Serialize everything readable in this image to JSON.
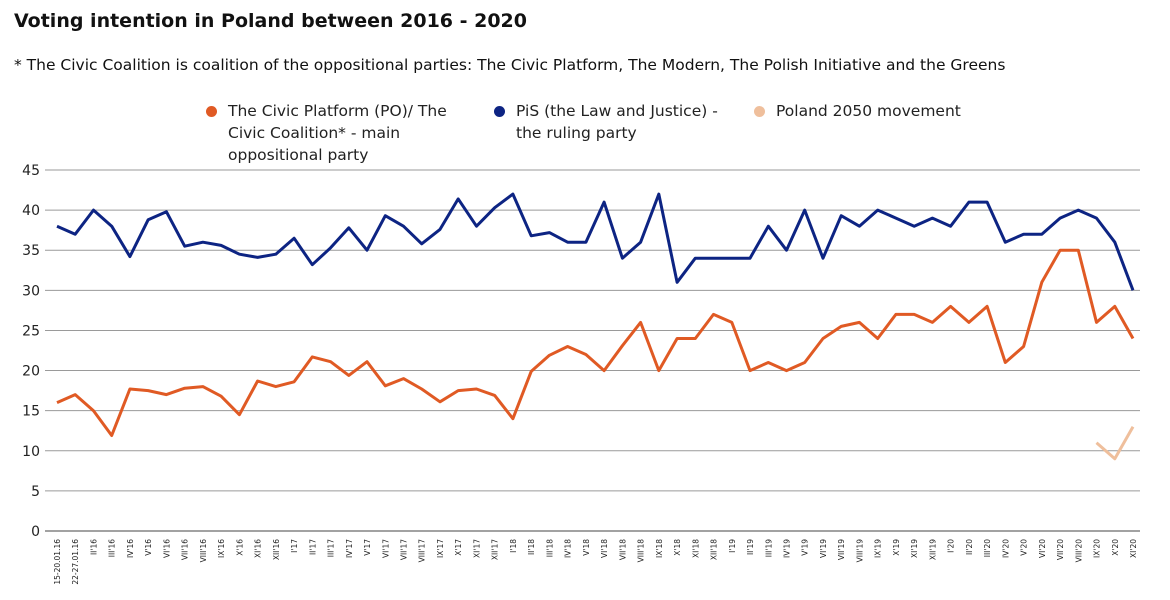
{
  "chart_data": {
    "type": "line",
    "title": "Voting intention in Poland between 2016 - 2020",
    "subtitle": "* The Civic Coalition is coalition of the oppositional parties: The Civic Platform, The Modern, The Polish Initiative and the Greens",
    "categories": [
      "15-20.01.16",
      "22-27.01.16",
      "II'16",
      "III'16",
      "IV'16",
      "V'16",
      "VI'16",
      "VII'16",
      "VIII'16",
      "IX'16",
      "X'16",
      "XI'16",
      "XII'16",
      "I'17",
      "II'17",
      "III'17",
      "IV'17",
      "V'17",
      "VI'17",
      "VII'17",
      "VIII'17",
      "IX'17",
      "X'17",
      "XI'17",
      "XII'17",
      "I'18",
      "II'18",
      "III'18",
      "IV'18",
      "V'18",
      "VI'18",
      "VII'18",
      "VIII'18",
      "IX'18",
      "X'18",
      "XI'18",
      "XII'18",
      "I'19",
      "II'19",
      "III'19",
      "IV'19",
      "V'19",
      "VI'19",
      "VII'19",
      "VIII'19",
      "IX'19",
      "X'19",
      "XI'19",
      "XII'19",
      "I'20",
      "II'20",
      "III'20",
      "IV'20",
      "V'20",
      "VI'20",
      "VII'20",
      "VIII'20",
      "IX'20",
      "X'20",
      "XI'20"
    ],
    "series": [
      {
        "name": "The Civic Platform (PO)/ The Civic Coalition* - main oppositional party",
        "color": "#e05a24",
        "values": [
          16,
          17,
          15,
          11.9,
          17.7,
          17.5,
          17,
          17.8,
          18,
          16.8,
          14.5,
          18.7,
          18,
          18.6,
          21.7,
          21.1,
          19.4,
          21.1,
          18.1,
          19,
          17.7,
          16.1,
          17.5,
          17.7,
          16.9,
          14,
          19.9,
          21.9,
          23,
          22,
          20,
          23.1,
          26,
          20,
          24,
          24,
          27,
          26,
          20,
          21,
          20,
          21,
          24,
          25.5,
          26,
          24,
          27,
          27,
          26,
          28,
          26,
          28,
          21,
          23,
          31,
          35,
          35,
          26,
          28,
          24
        ]
      },
      {
        "name": "PiS (the Law and Justice) - the ruling party",
        "color": "#0d2483",
        "values": [
          38,
          37,
          40,
          38,
          34.2,
          38.8,
          39.8,
          35.5,
          36,
          35.6,
          34.5,
          34.1,
          34.5,
          36.5,
          33.2,
          35.3,
          37.8,
          35,
          39.3,
          38,
          35.8,
          37.6,
          41.4,
          38,
          40.3,
          42,
          36.8,
          37.2,
          36,
          36,
          41,
          34,
          36,
          42,
          31,
          34,
          34,
          34,
          34,
          38,
          35,
          40,
          34,
          39.3,
          38,
          40,
          39,
          38,
          39,
          38,
          41,
          41,
          36,
          37,
          37,
          39,
          40,
          39,
          36,
          30
        ]
      },
      {
        "name": "Poland 2050 movement",
        "color": "#efbf9c",
        "values": [
          null,
          null,
          null,
          null,
          null,
          null,
          null,
          null,
          null,
          null,
          null,
          null,
          null,
          null,
          null,
          null,
          null,
          null,
          null,
          null,
          null,
          null,
          null,
          null,
          null,
          null,
          null,
          null,
          null,
          null,
          null,
          null,
          null,
          null,
          null,
          null,
          null,
          null,
          null,
          null,
          null,
          null,
          null,
          null,
          null,
          null,
          null,
          null,
          null,
          null,
          null,
          null,
          null,
          null,
          null,
          null,
          null,
          11,
          9,
          13
        ]
      }
    ],
    "ylim": [
      0,
      45
    ],
    "yticks": [
      0,
      5,
      10,
      15,
      20,
      25,
      30,
      35,
      40,
      45
    ],
    "grid": true
  }
}
